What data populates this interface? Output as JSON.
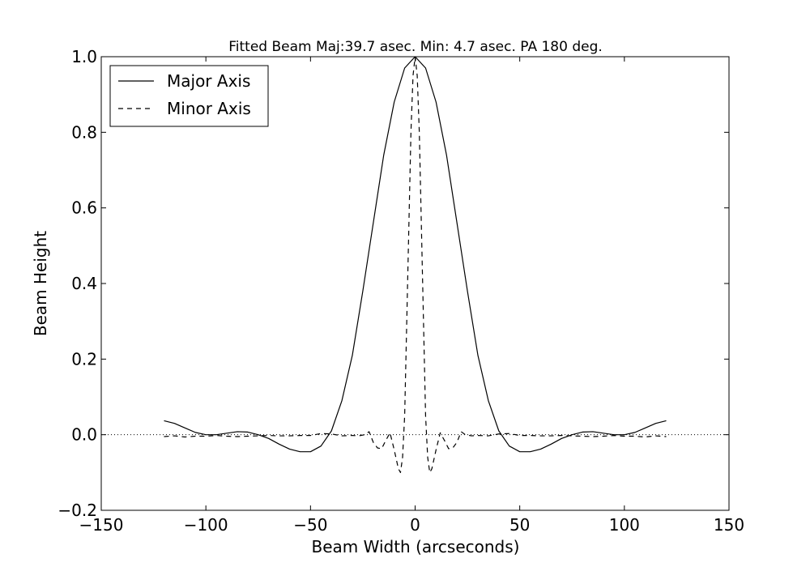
{
  "chart_data": {
    "type": "line",
    "title": "Fitted Beam Maj:39.7 asec. Min: 4.7 asec. PA 180 deg.",
    "xlabel": "Beam Width (arcseconds)",
    "ylabel": "Beam Height",
    "xlim": [
      -150,
      150
    ],
    "ylim": [
      -0.2,
      1.0
    ],
    "xticks": [
      -150,
      -100,
      -50,
      0,
      50,
      100,
      150
    ],
    "xtick_labels": [
      "−150",
      "−100",
      "−50",
      "0",
      "50",
      "100",
      "150"
    ],
    "yticks": [
      -0.2,
      0.0,
      0.2,
      0.4,
      0.6,
      0.8,
      1.0
    ],
    "ytick_labels": [
      "−0.2",
      "0.0",
      "0.2",
      "0.4",
      "0.6",
      "0.8",
      "1.0"
    ],
    "grid": false,
    "legend_position": "top-left",
    "reference_line": {
      "y": 0,
      "style": "dotted"
    },
    "series": [
      {
        "name": "Major Axis",
        "style": "solid",
        "color": "#000000",
        "x": [
          -120,
          -115,
          -110,
          -105,
          -100,
          -95,
          -90,
          -85,
          -80,
          -75,
          -70,
          -65,
          -60,
          -55,
          -50,
          -45,
          -40,
          -35,
          -30,
          -25,
          -20,
          -15,
          -10,
          -5,
          0,
          5,
          10,
          15,
          20,
          25,
          30,
          35,
          40,
          45,
          50,
          55,
          60,
          65,
          70,
          75,
          80,
          85,
          90,
          95,
          100,
          105,
          110,
          115,
          120
        ],
        "y": [
          0.037,
          0.03,
          0.018,
          0.006,
          0.0,
          0.0,
          0.004,
          0.008,
          0.007,
          0.0,
          -0.01,
          -0.025,
          -0.038,
          -0.045,
          -0.045,
          -0.03,
          0.01,
          0.09,
          0.21,
          0.38,
          0.56,
          0.74,
          0.88,
          0.97,
          1.0,
          0.97,
          0.88,
          0.74,
          0.56,
          0.38,
          0.21,
          0.09,
          0.01,
          -0.03,
          -0.045,
          -0.045,
          -0.038,
          -0.025,
          -0.01,
          0.0,
          0.007,
          0.008,
          0.004,
          0.0,
          0.0,
          0.006,
          0.018,
          0.03,
          0.037
        ]
      },
      {
        "name": "Minor Axis",
        "style": "dashed",
        "color": "#000000",
        "x": [
          -120,
          -115,
          -110,
          -105,
          -100,
          -95,
          -90,
          -85,
          -80,
          -75,
          -70,
          -65,
          -60,
          -55,
          -50,
          -45,
          -40,
          -35,
          -30,
          -27,
          -24,
          -22,
          -20,
          -18,
          -16,
          -14,
          -12,
          -10,
          -8,
          -7,
          -6,
          -5,
          -4,
          -3,
          -2,
          -1,
          0,
          1,
          2,
          3,
          4,
          5,
          6,
          7,
          8,
          10,
          12,
          14,
          16,
          18,
          20,
          22,
          24,
          27,
          30,
          35,
          40,
          45,
          50,
          55,
          60,
          65,
          70,
          75,
          80,
          85,
          90,
          95,
          100,
          105,
          110,
          115,
          120
        ],
        "y": [
          -0.005,
          -0.003,
          -0.006,
          -0.004,
          -0.004,
          -0.002,
          -0.004,
          -0.005,
          -0.004,
          -0.003,
          -0.002,
          -0.003,
          -0.003,
          -0.002,
          -0.002,
          0.003,
          0.002,
          -0.003,
          -0.002,
          -0.003,
          0.0,
          0.008,
          -0.02,
          -0.035,
          -0.037,
          -0.015,
          0.005,
          -0.04,
          -0.09,
          -0.1,
          -0.06,
          0.05,
          0.3,
          0.55,
          0.8,
          0.95,
          1.0,
          0.95,
          0.8,
          0.55,
          0.3,
          0.05,
          -0.06,
          -0.1,
          -0.09,
          -0.04,
          0.005,
          -0.015,
          -0.037,
          -0.035,
          -0.02,
          0.008,
          0.0,
          -0.003,
          -0.002,
          -0.003,
          0.002,
          0.003,
          -0.002,
          -0.002,
          -0.003,
          -0.003,
          -0.002,
          -0.003,
          -0.004,
          -0.005,
          -0.004,
          -0.002,
          -0.004,
          -0.004,
          -0.006,
          -0.003,
          -0.005
        ]
      }
    ]
  }
}
